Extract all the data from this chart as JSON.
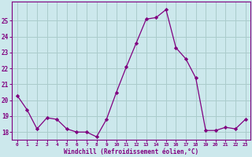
{
  "x": [
    0,
    1,
    2,
    3,
    4,
    5,
    6,
    7,
    8,
    9,
    10,
    11,
    12,
    13,
    14,
    15,
    16,
    17,
    18,
    19,
    20,
    21,
    22,
    23
  ],
  "y": [
    20.3,
    19.4,
    18.2,
    18.9,
    18.8,
    18.2,
    18.0,
    18.0,
    17.7,
    18.8,
    20.5,
    22.1,
    23.6,
    25.1,
    25.2,
    25.7,
    23.3,
    22.6,
    21.4,
    18.1,
    18.1,
    18.3,
    18.2,
    18.8
  ],
  "line_color": "#800080",
  "marker": "D",
  "marker_size": 2.2,
  "bg_color": "#cce8ec",
  "grid_color": "#aacccc",
  "tick_color": "#800080",
  "xlabel": "Windchill (Refroidissement éolien,°C)",
  "xlabel_color": "#800080",
  "ylim": [
    17.5,
    26.2
  ],
  "yticks": [
    18,
    19,
    20,
    21,
    22,
    23,
    24,
    25
  ],
  "xticks": [
    0,
    1,
    2,
    3,
    4,
    5,
    6,
    7,
    8,
    9,
    10,
    11,
    12,
    13,
    14,
    15,
    16,
    17,
    18,
    19,
    20,
    21,
    22,
    23
  ]
}
